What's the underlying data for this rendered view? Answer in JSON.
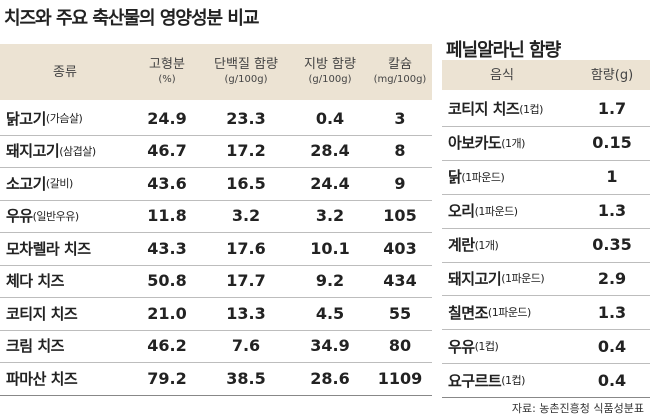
{
  "left": {
    "title": "치즈와 주요 축산물의 영양성분 비교",
    "header": [
      {
        "main": "종류"
      },
      {
        "main": "고형분",
        "unit": "(%)"
      },
      {
        "main": "단백질 함량",
        "unit": "(g/100g)"
      },
      {
        "main": "지방 함량",
        "unit": "(g/100g)"
      },
      {
        "main": "칼슘",
        "unit": "(mg/100g)"
      }
    ],
    "rows": [
      {
        "name": "닭고기",
        "note": "(가슴살)",
        "values": [
          "24.9",
          "23.3",
          "0.4",
          "3"
        ]
      },
      {
        "name": "돼지고기",
        "note": "(삼겹살)",
        "values": [
          "46.7",
          "17.2",
          "28.4",
          "8"
        ]
      },
      {
        "name": "소고기",
        "note": "(갈비)",
        "values": [
          "43.6",
          "16.5",
          "24.4",
          "9"
        ]
      },
      {
        "name": "우유",
        "note": "(일반우유)",
        "values": [
          "11.8",
          "3.2",
          "3.2",
          "105"
        ]
      },
      {
        "name": "모차렐라 치즈",
        "values": [
          "43.3",
          "17.6",
          "10.1",
          "403"
        ]
      },
      {
        "name": "체다 치즈",
        "values": [
          "50.8",
          "17.7",
          "9.2",
          "434"
        ]
      },
      {
        "name": "코티지 치즈",
        "values": [
          "21.0",
          "13.3",
          "4.5",
          "55"
        ]
      },
      {
        "name": "크림 치즈",
        "values": [
          "46.2",
          "7.6",
          "34.9",
          "80"
        ]
      },
      {
        "name": "파마산 치즈",
        "values": [
          "79.2",
          "38.5",
          "28.6",
          "1109"
        ]
      }
    ]
  },
  "right": {
    "title": "페닐알라닌 함량",
    "header": [
      {
        "main": "음식"
      },
      {
        "main": "함량(g)"
      }
    ],
    "rows": [
      {
        "name": "코티지 치즈",
        "note": "(1컵)",
        "values": [
          "1.7"
        ]
      },
      {
        "name": "아보카도",
        "note": "(1개)",
        "values": [
          "0.15"
        ]
      },
      {
        "name": "닭",
        "note": "(1파운드)",
        "values": [
          "1"
        ]
      },
      {
        "name": "오리",
        "note": "(1파운드)",
        "values": [
          "1.3"
        ]
      },
      {
        "name": "계란",
        "note": "(1개)",
        "values": [
          "0.35"
        ]
      },
      {
        "name": "돼지고기",
        "note": "(1파운드)",
        "values": [
          "2.9"
        ]
      },
      {
        "name": "칠면조",
        "note": "(1파운드)",
        "values": [
          "1.3"
        ]
      },
      {
        "name": "우유",
        "note": "(1컵)",
        "values": [
          "0.4"
        ]
      },
      {
        "name": "요구르트",
        "note": "(1컵)",
        "values": [
          "0.4"
        ]
      }
    ]
  },
  "source": "자료: 농촌진흥청 식품성분표"
}
